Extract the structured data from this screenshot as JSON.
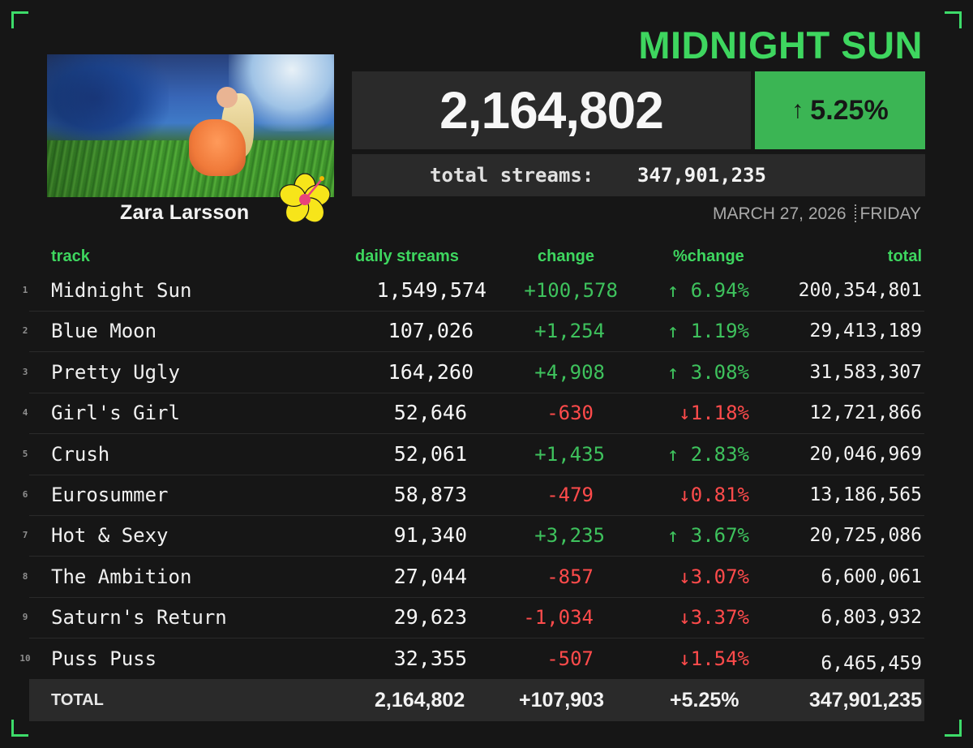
{
  "header": {
    "title": "MIDNIGHT SUN",
    "artist": "Zara Larsson",
    "daily_total": "2,164,802",
    "percent_change": "5.25%",
    "total_streams_label": "total streams:",
    "total_streams_value": "347,901,235",
    "date": "MARCH 27, 2026",
    "weekday": "FRIDAY"
  },
  "colors": {
    "accent_green": "#3ed65f",
    "positive": "#3ec25d",
    "negative": "#ff4b4b",
    "badge_green": "#3bb554",
    "background": "#161616",
    "panel": "#2a2a2a"
  },
  "icons": {
    "up_arrow": "↑",
    "down_arrow": "↓"
  },
  "table": {
    "columns": [
      "track",
      "daily streams",
      "change",
      "%change",
      "total"
    ],
    "rows": [
      {
        "rank": "1",
        "track": "Midnight Sun",
        "daily": "1,549,574",
        "change": "+100,578",
        "pct_arrow": "↑",
        "pct": " 6.94%",
        "total": "200,354,801",
        "dir": "up"
      },
      {
        "rank": "2",
        "track": "Blue Moon",
        "daily": "107,026",
        "change": "+1,254",
        "pct_arrow": "↑",
        "pct": " 1.19%",
        "total": "29,413,189",
        "dir": "up"
      },
      {
        "rank": "3",
        "track": "Pretty Ugly",
        "daily": "164,260",
        "change": "+4,908",
        "pct_arrow": "↑",
        "pct": " 3.08%",
        "total": "31,583,307",
        "dir": "up"
      },
      {
        "rank": "4",
        "track": "Girl's Girl",
        "daily": "52,646",
        "change": "-630",
        "pct_arrow": "↓",
        "pct": "1.18%",
        "total": "12,721,866",
        "dir": "down"
      },
      {
        "rank": "5",
        "track": "Crush",
        "daily": "52,061",
        "change": "+1,435",
        "pct_arrow": "↑",
        "pct": " 2.83%",
        "total": "20,046,969",
        "dir": "up"
      },
      {
        "rank": "6",
        "track": "Eurosummer",
        "daily": "58,873",
        "change": "-479",
        "pct_arrow": "↓",
        "pct": "0.81%",
        "total": "13,186,565",
        "dir": "down"
      },
      {
        "rank": "7",
        "track": "Hot & Sexy",
        "daily": "91,340",
        "change": "+3,235",
        "pct_arrow": "↑",
        "pct": " 3.67%",
        "total": "20,725,086",
        "dir": "up"
      },
      {
        "rank": "8",
        "track": "The Ambition",
        "daily": "27,044",
        "change": "-857",
        "pct_arrow": "↓",
        "pct": "3.07%",
        "total": "6,600,061",
        "dir": "down"
      },
      {
        "rank": "9",
        "track": "Saturn's Return",
        "daily": "29,623",
        "change": "-1,034",
        "pct_arrow": "↓",
        "pct": "3.37%",
        "total": "6,803,932",
        "dir": "down"
      },
      {
        "rank": "10",
        "track": "Puss Puss",
        "daily": "32,355",
        "change": "-507",
        "pct_arrow": "↓",
        "pct": "1.54%",
        "total": "6,465,459",
        "dir": "down"
      }
    ],
    "totals": {
      "label": "TOTAL",
      "daily": "2,164,802",
      "change": "+107,903",
      "pct": "+5.25%",
      "total": "347,901,235"
    }
  }
}
